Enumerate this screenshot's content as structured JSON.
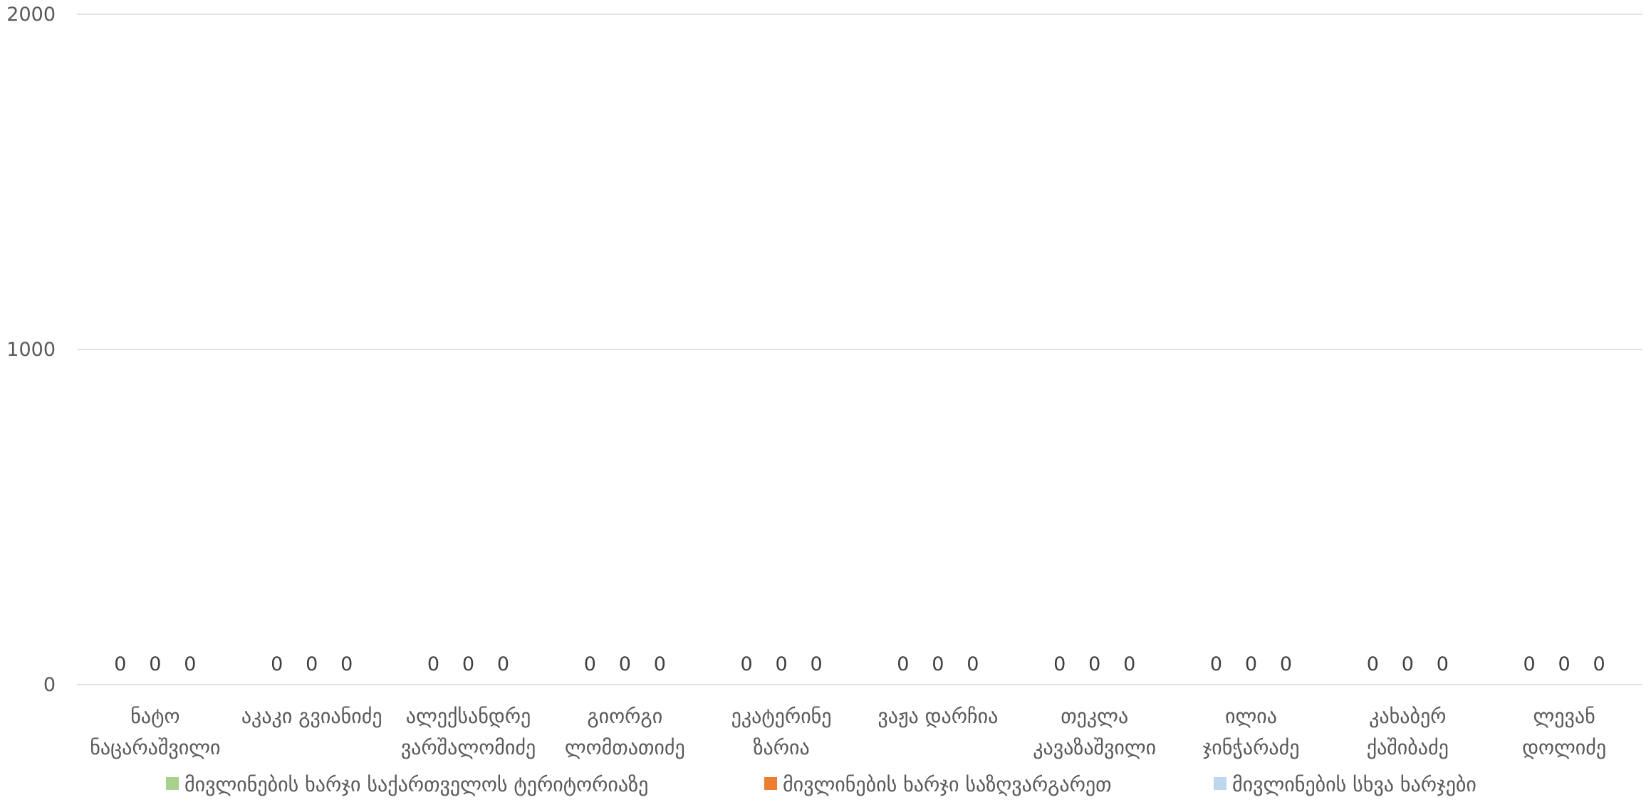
{
  "chart_data": {
    "type": "bar",
    "ylim": [
      0,
      2000
    ],
    "yticks": [
      0,
      1000,
      2000
    ],
    "grid": true,
    "legend_position": "bottom",
    "categories": [
      [
        "ნატო",
        "ნაცარაშვილი"
      ],
      [
        "აკაკი გვიანიძე"
      ],
      [
        "ალექსანდრე",
        "ვარშალომიძე"
      ],
      [
        "გიორგი",
        "ლომთათიძე"
      ],
      [
        "ეკატერინე",
        "ზარია"
      ],
      [
        "ვაჟა დარჩია"
      ],
      [
        "თეკლა",
        "კავაზაშვილი"
      ],
      [
        "ილია",
        "ჯინჭარაძე"
      ],
      [
        "კახაბერ",
        "ქაშიბაძე"
      ],
      [
        "ლევან",
        "დოლიძე"
      ]
    ],
    "series": [
      {
        "name": "მივლინების ხარჯი საქართველოს ტერიტორიაზე",
        "color": "#a9d18e",
        "values": [
          0,
          0,
          0,
          0,
          0,
          0,
          0,
          0,
          0,
          0
        ]
      },
      {
        "name": "მივლინების ხარჯი საზღვარგარეთ",
        "color": "#ed7d31",
        "values": [
          0,
          0,
          0,
          0,
          0,
          0,
          0,
          0,
          0,
          0
        ]
      },
      {
        "name": "მივლინების სხვა ხარჯები",
        "color": "#bdd7ee",
        "values": [
          0,
          0,
          0,
          0,
          0,
          0,
          0,
          0,
          0,
          0
        ]
      }
    ]
  }
}
